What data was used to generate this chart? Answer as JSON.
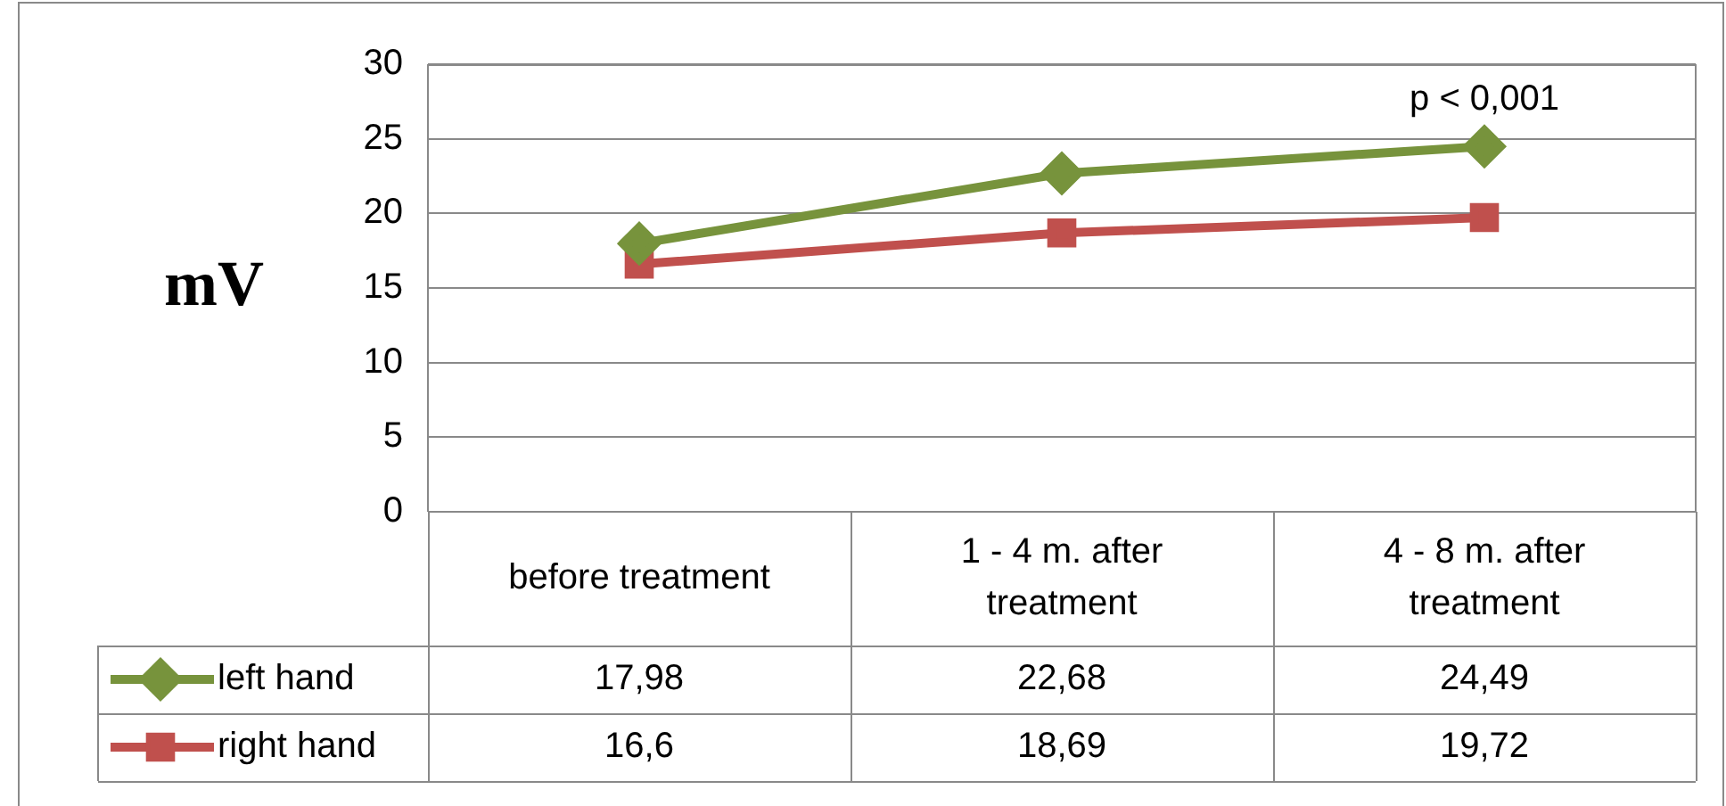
{
  "chart_data": {
    "type": "line",
    "ylabel": "mV",
    "categories": [
      "before treatment",
      "1 - 4 m. after treatment",
      "4 - 8 m. after treatment"
    ],
    "series": [
      {
        "name": "left hand",
        "color": "#77933c",
        "marker": "diamond",
        "values": [
          17.98,
          22.68,
          24.49
        ],
        "value_labels": [
          "17,98",
          "22,68",
          "24,49"
        ]
      },
      {
        "name": "right hand",
        "color": "#c0504d",
        "marker": "square",
        "values": [
          16.6,
          18.69,
          19.72
        ],
        "value_labels": [
          "16,6",
          "18,69",
          "19,72"
        ]
      }
    ],
    "ylim": [
      0,
      30
    ],
    "yticks": [
      0,
      5,
      10,
      15,
      20,
      25,
      30
    ],
    "grid": "y",
    "legend": "bottom",
    "annotations": [
      {
        "text": "p < 0,001",
        "x": "4 - 8 m. after treatment",
        "y": 24.49
      }
    ]
  }
}
